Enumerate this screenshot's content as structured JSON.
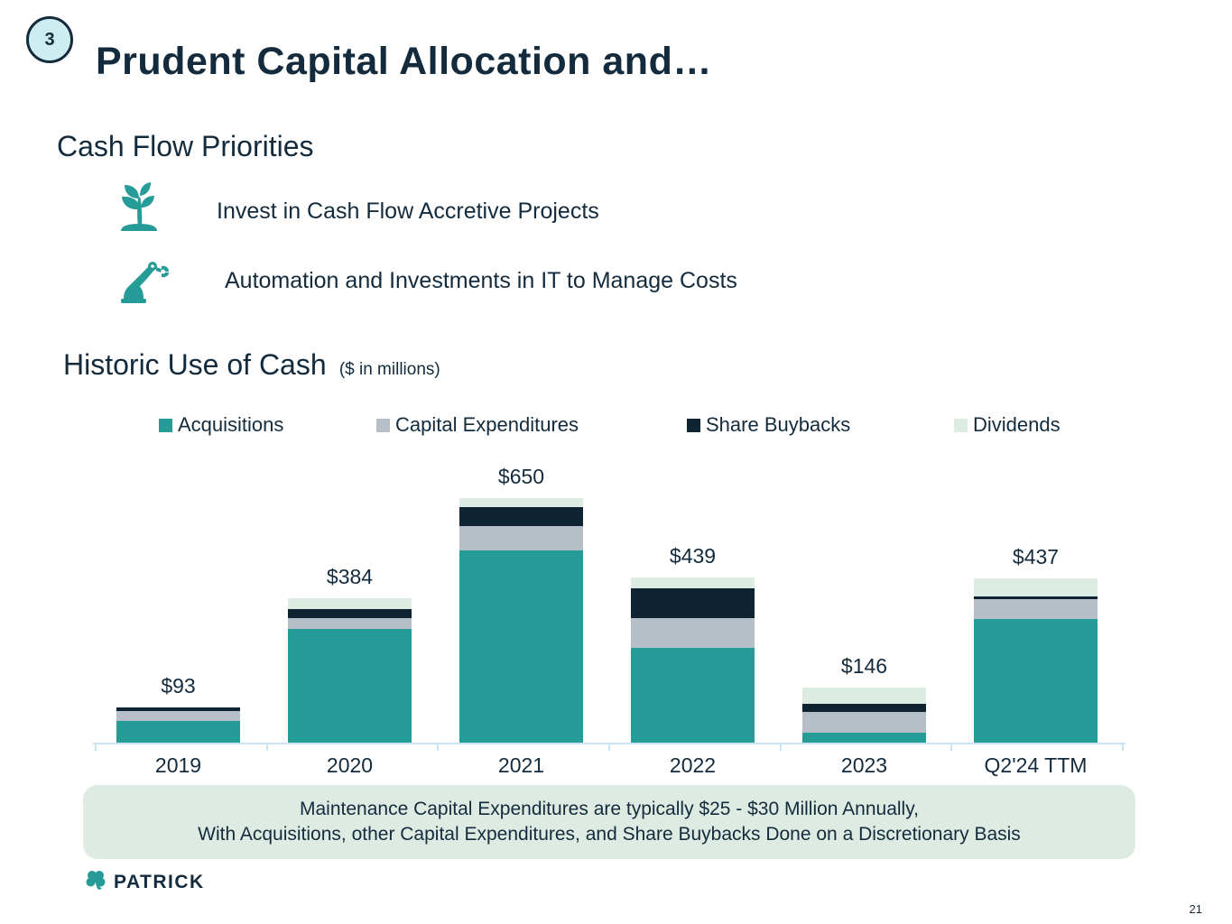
{
  "slide": {
    "badge": "3",
    "title": "Prudent Capital Allocation and…",
    "page_number": "21"
  },
  "priorities": {
    "heading": "Cash Flow Priorities",
    "items": [
      {
        "icon": "seedling-icon",
        "label": "Invest in Cash Flow Accretive Projects"
      },
      {
        "icon": "robot-arm-icon",
        "label": "Automation and Investments in IT to Manage Costs"
      }
    ]
  },
  "chart_section": {
    "heading": "Historic Use of Cash",
    "heading_note": "($ in millions)"
  },
  "chart_data": {
    "type": "bar",
    "stacked": true,
    "title": "Historic Use of Cash ($ in millions)",
    "xlabel": "",
    "ylabel": "",
    "ylim": [
      0,
      700
    ],
    "grid": false,
    "legend_position": "top",
    "categories": [
      "2019",
      "2020",
      "2021",
      "2022",
      "2023",
      "Q2'24 TTM"
    ],
    "series": [
      {
        "name": "Acquisitions",
        "color": "#269C98",
        "values": [
          57,
          302,
          511,
          253,
          26,
          329
        ]
      },
      {
        "name": "Capital Expenditures",
        "color": "#B6BFC8",
        "values": [
          26,
          28,
          64,
          78,
          55,
          52
        ]
      },
      {
        "name": "Share Buybacks",
        "color": "#0E2433",
        "values": [
          10,
          25,
          51,
          80,
          22,
          8
        ]
      },
      {
        "name": "Dividends",
        "color": "#DCECE3",
        "values": [
          0,
          29,
          24,
          28,
          43,
          48
        ]
      }
    ],
    "totals": [
      "$93",
      "$384",
      "$650",
      "$439",
      "$146",
      "$437"
    ]
  },
  "footnote": {
    "line1": "Maintenance Capital Expenditures are typically $25 - $30 Million Annually,",
    "line2": "With Acquisitions, other Capital Expenditures, and Share Buybacks Done on a Discretionary Basis"
  },
  "logo": {
    "icon": "shamrock-icon",
    "text": "PATRICK"
  },
  "colors": {
    "text_navy": "#132B3C",
    "teal": "#269C98",
    "gray": "#B6BFC8",
    "dark_navy": "#0E2433",
    "mint": "#DCECE3",
    "footnote_bg": "#DEEBE2",
    "badge_bg": "#CDEDF1",
    "axis": "#C9E5F1"
  }
}
